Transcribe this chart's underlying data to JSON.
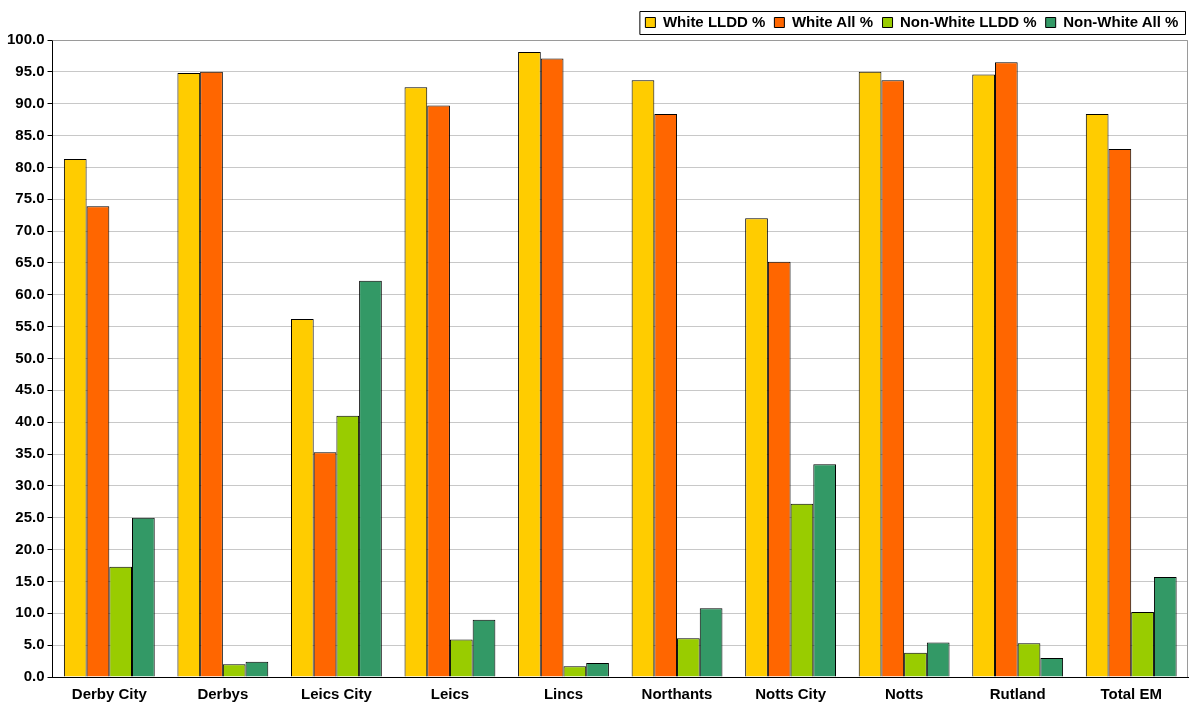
{
  "chart_data": {
    "type": "bar",
    "categories": [
      "Derby City",
      "Derbys",
      "Leics City",
      "Leics",
      "Lincs",
      "Northants",
      "Notts City",
      "Notts",
      "Rutland",
      "Total EM"
    ],
    "series": [
      {
        "name": "White LLDD %",
        "color": "#ffcc00",
        "values": [
          81.3,
          94.8,
          56.2,
          92.6,
          98.1,
          93.7,
          72.0,
          95.0,
          94.6,
          88.4
        ]
      },
      {
        "name": "White All %",
        "color": "#ff6600",
        "values": [
          73.9,
          95.0,
          35.3,
          89.7,
          97.1,
          88.4,
          65.2,
          93.7,
          96.5,
          82.9
        ]
      },
      {
        "name": "Non-White LLDD %",
        "color": "#99cc00",
        "values": [
          17.3,
          2.0,
          41.0,
          5.9,
          1.7,
          6.1,
          27.2,
          3.8,
          5.3,
          10.2
        ]
      },
      {
        "name": "Non-White All %",
        "color": "#339966",
        "values": [
          25.0,
          2.4,
          62.2,
          9.0,
          2.2,
          10.8,
          33.4,
          5.4,
          3.0,
          15.7
        ]
      }
    ],
    "ylim": [
      0,
      100
    ],
    "yticks": [
      {
        "value": 0,
        "label": "0.0"
      },
      {
        "value": 5,
        "label": "5.0"
      },
      {
        "value": 10,
        "label": "10.0"
      },
      {
        "value": 15,
        "label": "15.0"
      },
      {
        "value": 20,
        "label": "20.0"
      },
      {
        "value": 25,
        "label": "25.0"
      },
      {
        "value": 30,
        "label": "30.0"
      },
      {
        "value": 35,
        "label": "35.0"
      },
      {
        "value": 40,
        "label": "40.0"
      },
      {
        "value": 45,
        "label": "45.0"
      },
      {
        "value": 50,
        "label": "50.0"
      },
      {
        "value": 55,
        "label": "55.0"
      },
      {
        "value": 60,
        "label": "60.0"
      },
      {
        "value": 65,
        "label": "65.0"
      },
      {
        "value": 70,
        "label": "70.0"
      },
      {
        "value": 75,
        "label": "75.0"
      },
      {
        "value": 80,
        "label": "80.0"
      },
      {
        "value": 85,
        "label": "85.0"
      },
      {
        "value": 90,
        "label": "90.0"
      },
      {
        "value": 95,
        "label": "95.0"
      },
      {
        "value": 100,
        "label": "100.0"
      }
    ],
    "grid": "y",
    "legend": "top right"
  }
}
